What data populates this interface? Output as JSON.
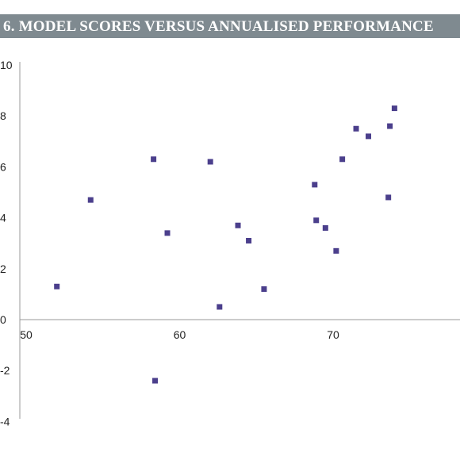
{
  "chart_data": {
    "type": "scatter",
    "title": "6. MODEL SCORES VERSUS ANNUALISED PERFORMANCE",
    "xlabel": "",
    "ylabel": "",
    "xlim": [
      50,
      80
    ],
    "ylim": [
      -4,
      10
    ],
    "xticks": [
      50,
      60,
      70
    ],
    "yticks": [
      10,
      8,
      6,
      4,
      2,
      0,
      -2,
      -4
    ],
    "marker_color": "#4b3f8c",
    "grid": false,
    "series": [
      {
        "points": [
          {
            "x": 52.0,
            "y": 1.3
          },
          {
            "x": 54.2,
            "y": 4.7
          },
          {
            "x": 58.3,
            "y": 6.3
          },
          {
            "x": 58.4,
            "y": -2.4
          },
          {
            "x": 59.2,
            "y": 3.4
          },
          {
            "x": 62.0,
            "y": 6.2
          },
          {
            "x": 62.6,
            "y": 0.5
          },
          {
            "x": 63.8,
            "y": 3.7
          },
          {
            "x": 64.5,
            "y": 3.1
          },
          {
            "x": 65.5,
            "y": 1.2
          },
          {
            "x": 68.8,
            "y": 5.3
          },
          {
            "x": 68.9,
            "y": 3.9
          },
          {
            "x": 69.5,
            "y": 3.6
          },
          {
            "x": 70.2,
            "y": 2.7
          },
          {
            "x": 70.6,
            "y": 6.3
          },
          {
            "x": 71.5,
            "y": 7.5
          },
          {
            "x": 72.3,
            "y": 7.2
          },
          {
            "x": 73.6,
            "y": 4.8
          },
          {
            "x": 73.7,
            "y": 7.6
          },
          {
            "x": 74.0,
            "y": 8.3
          }
        ]
      }
    ]
  }
}
